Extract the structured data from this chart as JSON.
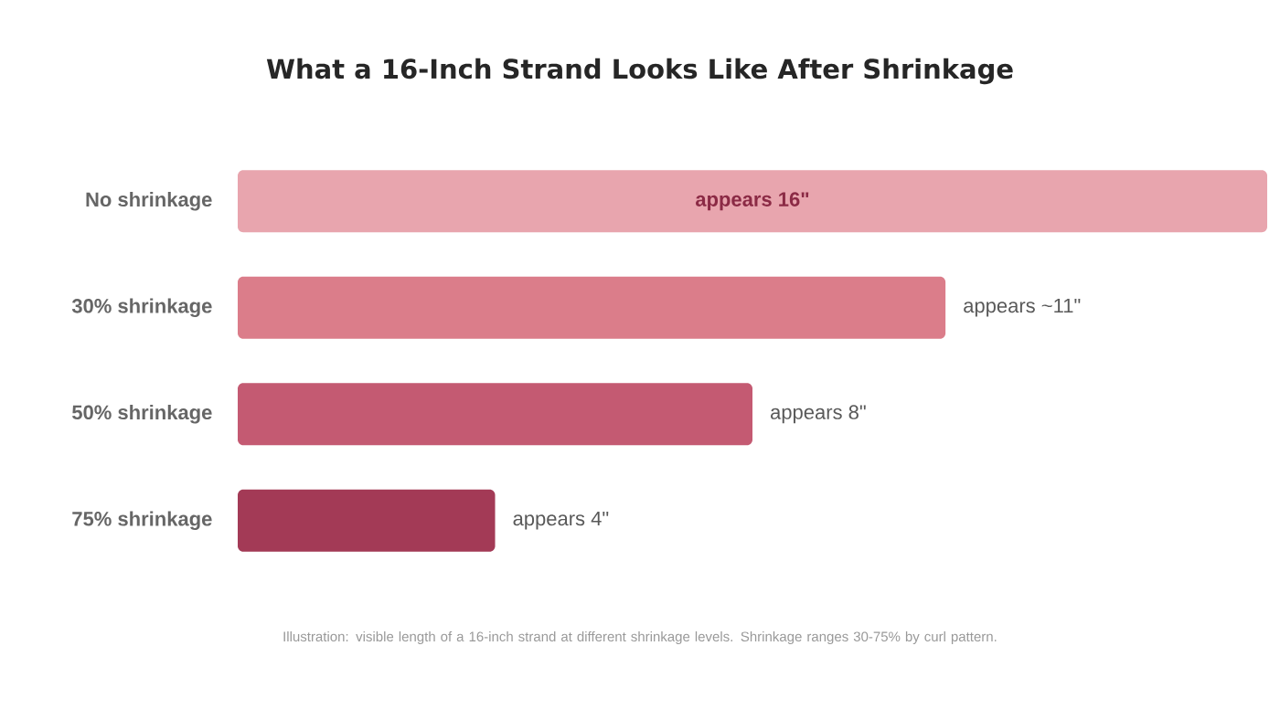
{
  "chart_data": {
    "type": "bar",
    "orientation": "horizontal",
    "title": "What a 16-Inch Strand Looks Like After Shrinkage",
    "categories": [
      "No shrinkage",
      "30% shrinkage",
      "50% shrinkage",
      "75% shrinkage"
    ],
    "values": [
      16,
      11,
      8,
      4
    ],
    "value_labels": [
      "appears 16\"",
      "appears ~11\"",
      "appears 8\"",
      "appears 4\""
    ],
    "colors": [
      "#e8a5ae",
      "#db7d8a",
      "#c45a72",
      "#a33a56"
    ],
    "annotations": [
      "Illustration: visible length of a 16-inch strand at different shrinkage levels. Shrinkage ranges 30-75% by curl pattern."
    ]
  }
}
